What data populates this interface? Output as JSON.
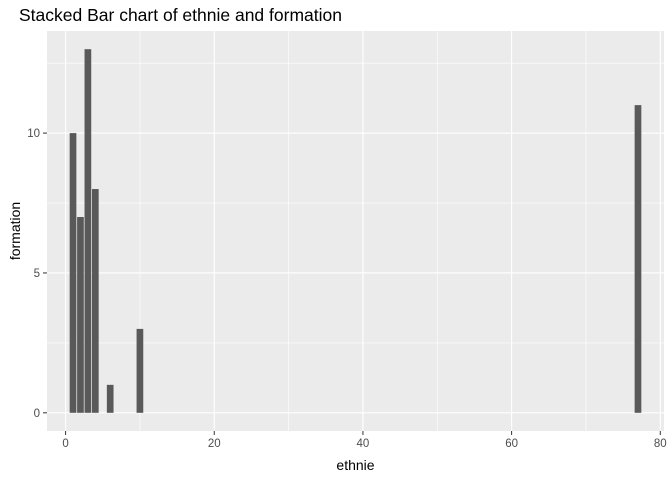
{
  "chart_data": {
    "type": "bar",
    "title": "Stacked Bar chart of ethnie and formation",
    "xlabel": "ethnie",
    "ylabel": "formation",
    "x": [
      1,
      2,
      3,
      4,
      6,
      10,
      77
    ],
    "values": [
      10,
      7,
      13,
      8,
      1,
      3,
      11
    ],
    "xlim": [
      -2.5,
      80.5
    ],
    "ylim": [
      -0.65,
      13.65
    ],
    "xticks": [
      0,
      20,
      40,
      60,
      80
    ],
    "xtick_labels": [
      "0",
      "20",
      "40",
      "60",
      "80"
    ],
    "yticks": [
      0,
      5,
      10
    ],
    "ytick_labels": [
      "0",
      "5",
      "10"
    ],
    "grid": true,
    "panel_color": "#ebebeb",
    "bar_color": "#595959",
    "grid_color": "#ffffff"
  }
}
